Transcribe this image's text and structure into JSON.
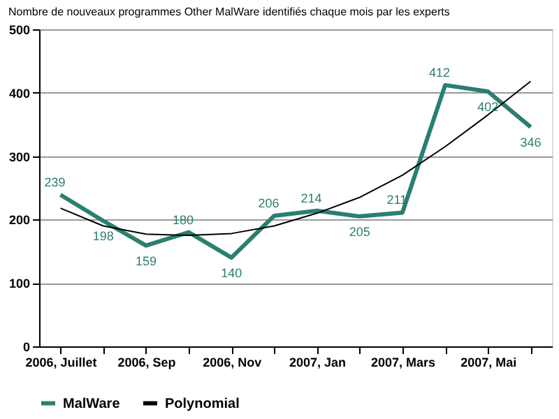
{
  "chart_data": {
    "type": "line",
    "title": "Nombre de nouveaux programmes Other MalWare identifiés chaque mois par les experts",
    "categories": [
      "2006, Juillet",
      null,
      "2006, Sep",
      null,
      "2006, Nov",
      null,
      "2007, Jan",
      null,
      "2007, Mars",
      null,
      "2007, Mai",
      null
    ],
    "series": [
      {
        "name": "MalWare",
        "color": "#2a7f6f",
        "values": [
          239,
          198,
          159,
          180,
          140,
          206,
          214,
          205,
          211,
          412,
          402,
          346
        ],
        "data_labels": true
      },
      {
        "name": "Polynomial",
        "color": "#000000",
        "values": [
          218,
          190,
          177,
          175,
          178,
          190,
          210,
          235,
          270,
          315,
          365,
          418
        ]
      }
    ],
    "ylim": [
      0,
      500
    ],
    "yticks": [
      0,
      100,
      200,
      300,
      400,
      500
    ],
    "grid": "y",
    "legend": "bottom",
    "marker": "none",
    "line_style": "solid"
  }
}
